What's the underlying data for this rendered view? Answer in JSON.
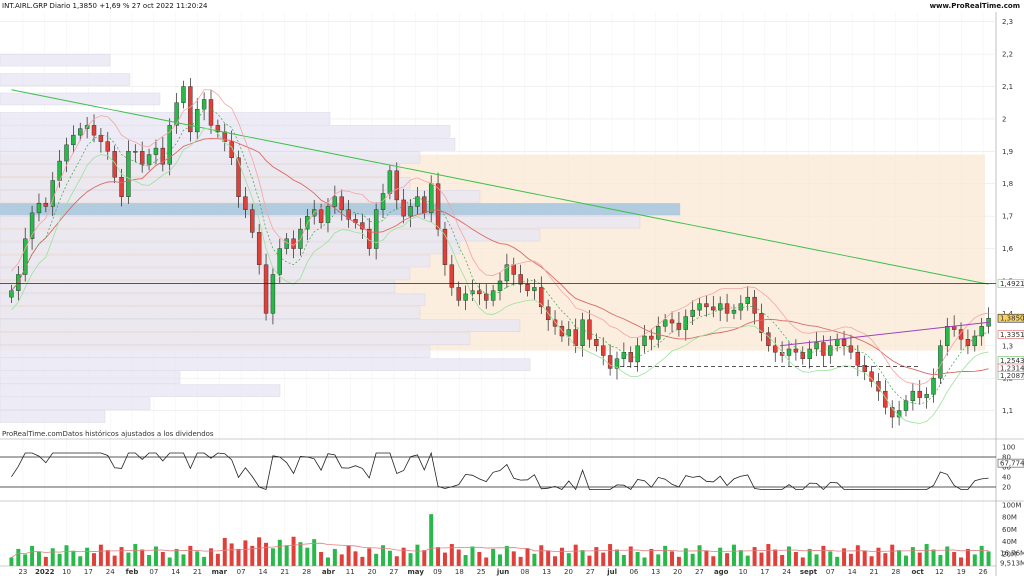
{
  "header": {
    "title": "INT.AIRL.GRP Diario 1,3850 +1,69 % 27 oct 2022 11:20:24",
    "brand": "www.ProRealTime.com"
  },
  "source_note": "ProRealTime.comDatos históricos ajustados a los dividendos",
  "colors": {
    "up": "#29b84a",
    "down": "#e0403a",
    "ma_long": "#3cc04a",
    "ma_mid": "#d96a66",
    "sar_like": "#f4a4a4",
    "profile_box": "#fbe7d2",
    "value_area": "#a9c8e0",
    "volume_ma": "#e08080"
  },
  "chart_data": [
    {
      "type": "candlestick",
      "panel": "price",
      "title": "INT.AIRL.GRP Diario 1,3850 +1,69 % 27 oct 2022 11:20:24",
      "y_ticks": [
        "2,3",
        "2,2",
        "2,1",
        "2",
        "1,9",
        "1,8",
        "1,7",
        "1,6",
        "1,5",
        "1,4",
        "1,3",
        "1,2",
        "1,1"
      ],
      "y_tick_values": [
        2.3,
        2.2,
        2.1,
        2.0,
        1.9,
        1.8,
        1.7,
        1.6,
        1.5,
        1.4,
        1.3,
        1.2,
        1.1
      ],
      "ylim": [
        1.04,
        2.33
      ],
      "x_tick_labels": [
        "23",
        "2022",
        "10",
        "17",
        "24",
        "feb",
        "07",
        "14",
        "21",
        "mar",
        "07",
        "14",
        "21",
        "28",
        "abr",
        "11",
        "20",
        "27",
        "may",
        "09",
        "18",
        "25",
        "jun",
        "08",
        "13",
        "20",
        "27",
        "jul",
        "06",
        "13",
        "20",
        "27",
        "ago",
        "10",
        "17",
        "24",
        "sept",
        "07",
        "14",
        "21",
        "28",
        "oct",
        "12",
        "19",
        "26"
      ],
      "markers": [
        {
          "label": "1,4921",
          "value": 1.4921
        },
        {
          "label": "1,3850",
          "value": 1.385
        },
        {
          "label": "1,3351",
          "value": 1.3351
        },
        {
          "label": "1,2543",
          "value": 1.2543
        },
        {
          "label": "1,2314",
          "value": 1.2314
        },
        {
          "label": "1,2087",
          "value": 1.2087
        }
      ],
      "closes": [
        1.47,
        1.52,
        1.63,
        1.71,
        1.74,
        1.73,
        1.81,
        1.87,
        1.92,
        1.95,
        1.97,
        1.98,
        1.95,
        1.93,
        1.9,
        1.82,
        1.76,
        1.9,
        1.9,
        1.86,
        1.89,
        1.91,
        1.86,
        1.98,
        2.05,
        2.1,
        1.96,
        2.03,
        2.06,
        1.98,
        1.96,
        1.93,
        1.88,
        1.76,
        1.72,
        1.65,
        1.55,
        1.4,
        1.52,
        1.6,
        1.63,
        1.6,
        1.66,
        1.7,
        1.72,
        1.68,
        1.73,
        1.76,
        1.72,
        1.69,
        1.68,
        1.66,
        1.6,
        1.72,
        1.77,
        1.84,
        1.75,
        1.7,
        1.73,
        1.76,
        1.71,
        1.8,
        1.66,
        1.55,
        1.48,
        1.44,
        1.46,
        1.47,
        1.46,
        1.44,
        1.47,
        1.5,
        1.55,
        1.52,
        1.49,
        1.47,
        1.48,
        1.42,
        1.38,
        1.36,
        1.33,
        1.35,
        1.3,
        1.38,
        1.32,
        1.3,
        1.27,
        1.23,
        1.26,
        1.28,
        1.25,
        1.3,
        1.33,
        1.32,
        1.36,
        1.38,
        1.37,
        1.35,
        1.39,
        1.41,
        1.43,
        1.42,
        1.41,
        1.43,
        1.4,
        1.41,
        1.43,
        1.45,
        1.4,
        1.34,
        1.3,
        1.28,
        1.27,
        1.29,
        1.28,
        1.26,
        1.29,
        1.31,
        1.27,
        1.3,
        1.32,
        1.3,
        1.28,
        1.24,
        1.22,
        1.19,
        1.16,
        1.11,
        1.08,
        1.1,
        1.13,
        1.16,
        1.14,
        1.15,
        1.2,
        1.3,
        1.36,
        1.35,
        1.32,
        1.3,
        1.33,
        1.36,
        1.385
      ],
      "volume_ylim": [
        0,
        100000000
      ],
      "volume_ticks": [
        "100M",
        "80M",
        "60M",
        "40M",
        "20M"
      ],
      "volume_markers": [
        {
          "label": "16,76M",
          "value": 16760000
        },
        {
          "label": "9,513M",
          "value": 9513000
        }
      ]
    },
    {
      "type": "line",
      "panel": "oscillator",
      "y_ticks": [
        "100",
        "80",
        "60",
        "40",
        "20"
      ],
      "y_tick_values": [
        100,
        80,
        60,
        40,
        20
      ],
      "ylim": [
        0,
        100
      ],
      "reference_lines": [
        80,
        20
      ],
      "markers": [
        {
          "label": "67,774",
          "value": 67.774
        }
      ]
    }
  ]
}
